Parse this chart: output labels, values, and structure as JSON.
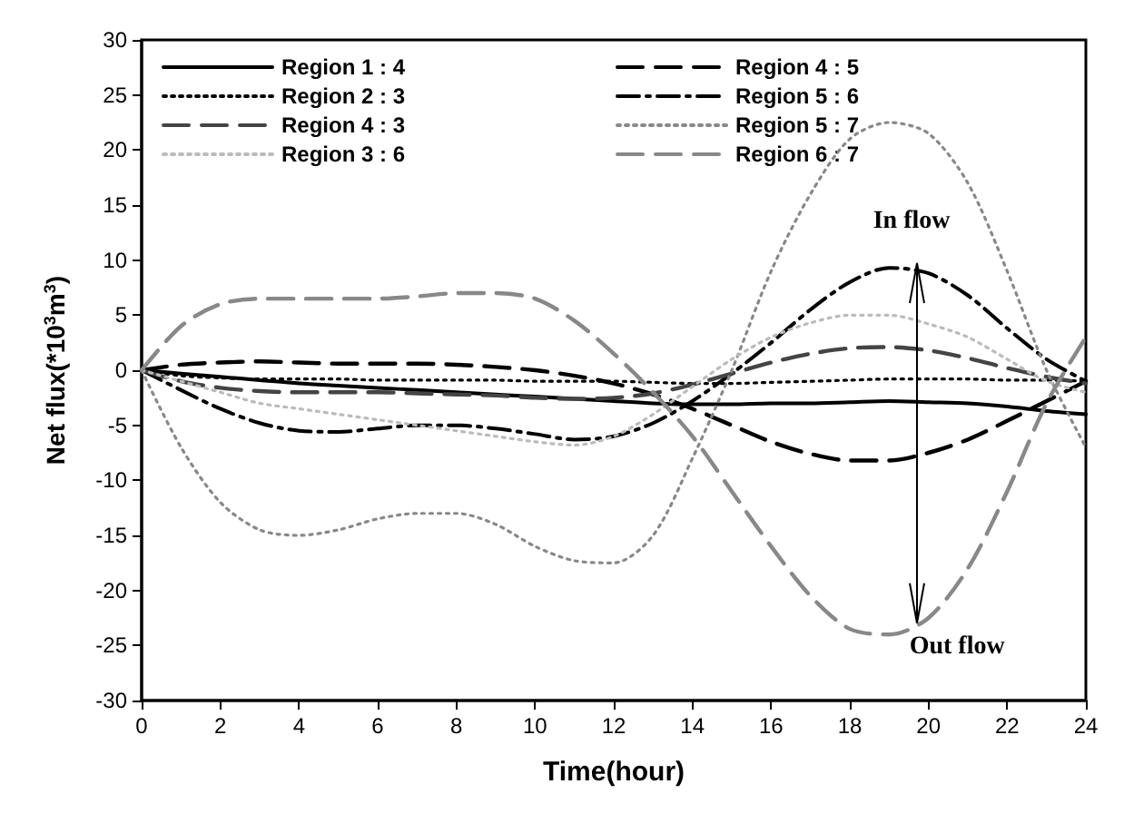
{
  "chart_data": {
    "type": "line",
    "xlabel": "Time(hour)",
    "ylabel": "Net flux(*10$^{3}$m$^{3}$)",
    "x": [
      0,
      1,
      2,
      3,
      4,
      5,
      6,
      7,
      8,
      9,
      10,
      11,
      12,
      13,
      14,
      15,
      16,
      17,
      18,
      19,
      20,
      21,
      22,
      23,
      24
    ],
    "xlim": [
      0,
      24
    ],
    "xticks": [
      0,
      2,
      4,
      6,
      8,
      10,
      12,
      14,
      16,
      18,
      20,
      22,
      24
    ],
    "ylim": [
      -30,
      30
    ],
    "yticks": [
      -30,
      -25,
      -20,
      -15,
      -10,
      -5,
      0,
      5,
      10,
      15,
      20,
      25,
      30
    ],
    "grid": false,
    "legend": "top left",
    "marker": "none",
    "annotations": [
      {
        "text": "In flow",
        "x": 19.7,
        "y": 9.7
      },
      {
        "text": "Out flow",
        "x": 19.7,
        "y": -23
      }
    ],
    "series": [
      {
        "name": "Region 1 : 4",
        "color": "#000000",
        "line_style": "solid",
        "values": [
          0,
          -0.3,
          -0.6,
          -0.9,
          -1.2,
          -1.4,
          -1.6,
          -1.8,
          -2,
          -2.2,
          -2.4,
          -2.6,
          -2.8,
          -3,
          -3.1,
          -3.1,
          -3,
          -3,
          -2.9,
          -2.8,
          -2.9,
          -3,
          -3.3,
          -3.7,
          -4
        ]
      },
      {
        "name": "Region 4 : 5",
        "color": "#000000",
        "line_style": "dashed",
        "values": [
          0,
          0.5,
          0.7,
          0.8,
          0.7,
          0.6,
          0.6,
          0.6,
          0.5,
          0.3,
          0,
          -0.5,
          -1.2,
          -2.2,
          -3.5,
          -5,
          -6.5,
          -7.6,
          -8.2,
          -8.2,
          -7.5,
          -6.3,
          -4.6,
          -2.8,
          -1
        ]
      },
      {
        "name": "Region 2 : 3",
        "color": "#000000",
        "line_style": "dotted",
        "values": [
          0,
          -0.5,
          -0.7,
          -0.8,
          -0.8,
          -0.8,
          -0.9,
          -0.9,
          -0.9,
          -0.9,
          -1,
          -1,
          -1,
          -1.1,
          -1.2,
          -1.2,
          -1.1,
          -1,
          -0.9,
          -0.8,
          -0.8,
          -0.8,
          -0.9,
          -0.9,
          -1
        ]
      },
      {
        "name": "Region 5 : 6",
        "color": "#000000",
        "line_style": "dashdot",
        "values": [
          0,
          -1.8,
          -3.5,
          -4.8,
          -5.5,
          -5.6,
          -5.3,
          -5,
          -5,
          -5.3,
          -5.8,
          -6.3,
          -6,
          -4.8,
          -2.8,
          -0.3,
          2.5,
          5.5,
          8,
          9.3,
          8.8,
          6.8,
          3.8,
          1,
          -1
        ]
      },
      {
        "name": "Region 4 : 3",
        "color": "#444444",
        "line_style": "dashed",
        "values": [
          0,
          -1,
          -1.6,
          -1.9,
          -2,
          -2,
          -2,
          -2.1,
          -2.2,
          -2.3,
          -2.5,
          -2.6,
          -2.5,
          -2.1,
          -1.3,
          -0.3,
          0.7,
          1.5,
          2,
          2.1,
          1.8,
          1.1,
          0.2,
          -0.6,
          -1.2
        ]
      },
      {
        "name": "Region 5 : 7",
        "color": "#888888",
        "line_style": "dotted",
        "values": [
          0,
          -7,
          -12,
          -14.5,
          -15,
          -14.5,
          -13.5,
          -13,
          -13,
          -14,
          -16,
          -17.3,
          -17.5,
          -15,
          -8,
          0,
          9,
          16,
          21,
          22.5,
          21.5,
          17,
          9,
          0,
          -7
        ]
      },
      {
        "name": "Region 3 : 6",
        "color": "#bbbbbb",
        "line_style": "dotted",
        "values": [
          0,
          -1,
          -2,
          -3,
          -3.5,
          -4,
          -4.5,
          -5,
          -5.5,
          -6,
          -6.5,
          -6.8,
          -6,
          -4,
          -1.5,
          1,
          3,
          4.3,
          5,
          5,
          4.2,
          3,
          1,
          -1,
          -2
        ]
      },
      {
        "name": "Region 6 : 7",
        "color": "#888888",
        "line_style": "dashed",
        "values": [
          0,
          4,
          6,
          6.5,
          6.5,
          6.5,
          6.5,
          6.7,
          7,
          7,
          6.5,
          4.5,
          1.5,
          -2,
          -6,
          -11,
          -16,
          -20.5,
          -23.5,
          -24,
          -22.5,
          -18,
          -11,
          -3,
          3
        ]
      }
    ]
  }
}
